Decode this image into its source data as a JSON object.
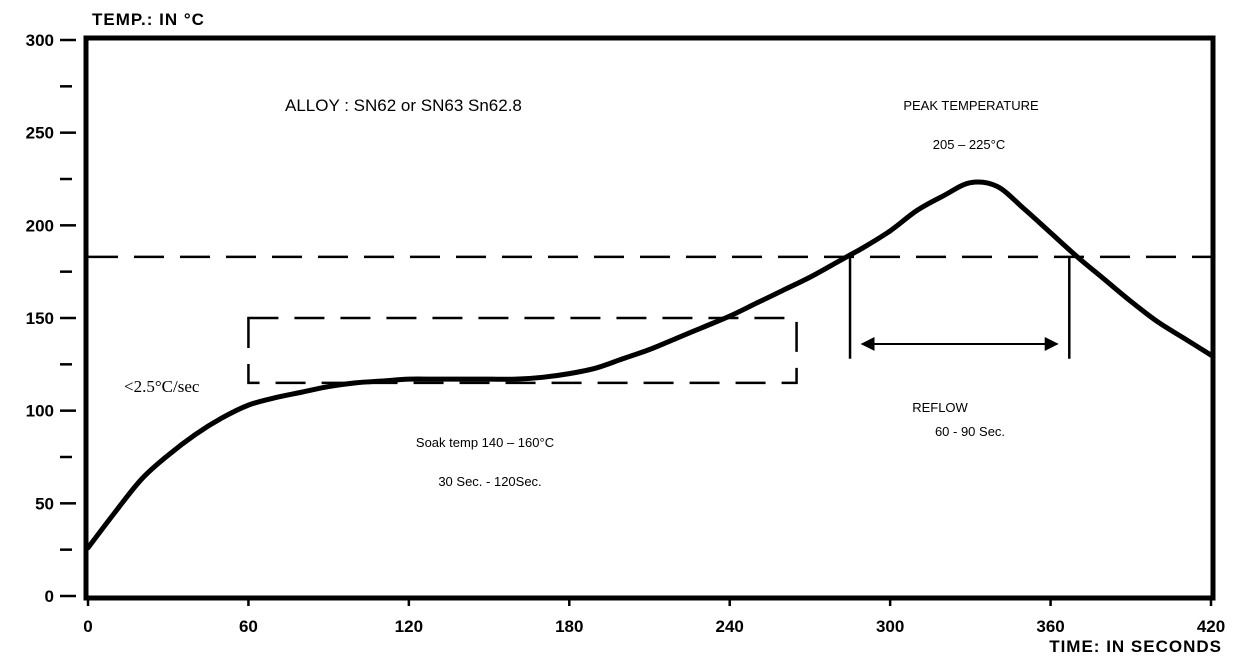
{
  "chart_data": {
    "type": "line",
    "title": "",
    "ylabel": "TEMP.: IN °C",
    "xlabel": "TIME: IN SECONDS",
    "xlim": [
      0,
      420
    ],
    "ylim": [
      0,
      300
    ],
    "x_ticks": [
      0,
      60,
      120,
      180,
      240,
      300,
      360,
      420
    ],
    "x_tick_labels": [
      "0",
      "60",
      "120",
      "180",
      "240",
      "300",
      "360",
      "420"
    ],
    "y_ticks": [
      0,
      50,
      100,
      150,
      200,
      250,
      300
    ],
    "y_tick_labels": [
      "0",
      "50",
      "100",
      "150",
      "200",
      "250",
      "300"
    ],
    "y_minor_ticks": [
      25,
      75,
      125,
      175,
      225,
      275
    ],
    "grid": false,
    "series": [
      {
        "name": "",
        "x": [
          0,
          10,
          20,
          30,
          40,
          50,
          60,
          70,
          80,
          90,
          100,
          110,
          120,
          130,
          140,
          150,
          160,
          170,
          180,
          190,
          200,
          210,
          220,
          230,
          240,
          250,
          260,
          270,
          280,
          285,
          290,
          300,
          310,
          320,
          330,
          340,
          350,
          360,
          370,
          380,
          390,
          400,
          410,
          420
        ],
        "y": [
          26,
          45,
          63,
          76,
          87,
          96,
          103,
          107,
          110,
          113,
          115,
          116,
          117,
          117,
          117,
          117,
          117,
          118,
          120,
          123,
          128,
          133,
          139,
          145,
          151,
          158,
          165,
          172,
          180,
          184,
          188,
          197,
          208,
          216,
          223,
          221,
          209,
          196,
          183,
          171,
          159,
          148,
          139,
          130
        ]
      }
    ],
    "reference_lines": [
      {
        "y": 183
      }
    ],
    "soak_box": {
      "x_start": 60,
      "x_end": 265,
      "y_low": 115,
      "y_high": 150
    },
    "reflow_markers": {
      "x_start": 285,
      "x_end": 367,
      "y_low": 128,
      "y_high": 183,
      "arrow_y": 136
    },
    "annotations": {
      "alloy": "ALLOY : SN62 or SN63 Sn62.8",
      "peak_title": "PEAK TEMPERATURE",
      "peak_range": "205 – 225°C",
      "ramp_rate": "<2.5°C/sec",
      "soak_temp": "Soak temp 140 – 160°C",
      "soak_time": "30 Sec. - 120Sec.",
      "reflow_title": "REFLOW",
      "reflow_time": "60 - 90 Sec."
    }
  }
}
